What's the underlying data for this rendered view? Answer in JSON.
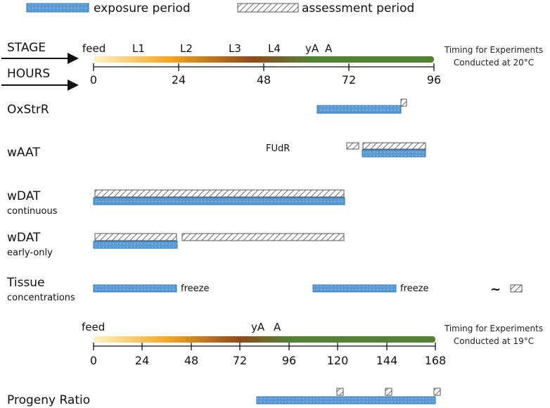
{
  "legend": {
    "exposure_label": "exposure period",
    "assessment_label": "assessment period"
  },
  "colors": {
    "exposure_fill": "#5b9bd5",
    "exposure_stroke": "#2e75b6",
    "assessment_stroke": "#555555",
    "bar_start": "#fdf3c4",
    "bar_mid1": "#f5a623",
    "bar_mid2": "#8b4a1c",
    "bar_green": "#548235"
  },
  "top": {
    "stage_label": "STAGE",
    "hours_label": "HOURS",
    "stages": [
      "feed",
      "L1",
      "L2",
      "L3",
      "L4",
      "yA",
      "A"
    ],
    "ticks": [
      "0",
      "24",
      "48",
      "72",
      "96"
    ],
    "timing_line1": "Timing for Experiments",
    "timing_line2": "Conducted at 20°C"
  },
  "rows": {
    "oxstrr": "OxStrR",
    "waat": "wAAT",
    "fudr": "FUdR",
    "wdat_cont": "wDAT",
    "wdat_cont_sub": "continuous",
    "wdat_early": "wDAT",
    "wdat_early_sub": "early-only",
    "tissue": "Tissue",
    "tissue_sub": "concentrations",
    "freeze1": "freeze",
    "freeze2": "freeze",
    "tilde": "~"
  },
  "bottom": {
    "stages": [
      "feed",
      "yA",
      "A"
    ],
    "ticks": [
      "0",
      "24",
      "48",
      "72",
      "96",
      "120",
      "144",
      "168"
    ],
    "timing_line1": "Timing for Experiments",
    "timing_line2": "Conducted at 19°C"
  },
  "progeny": {
    "label": "Progeny Ratio"
  }
}
